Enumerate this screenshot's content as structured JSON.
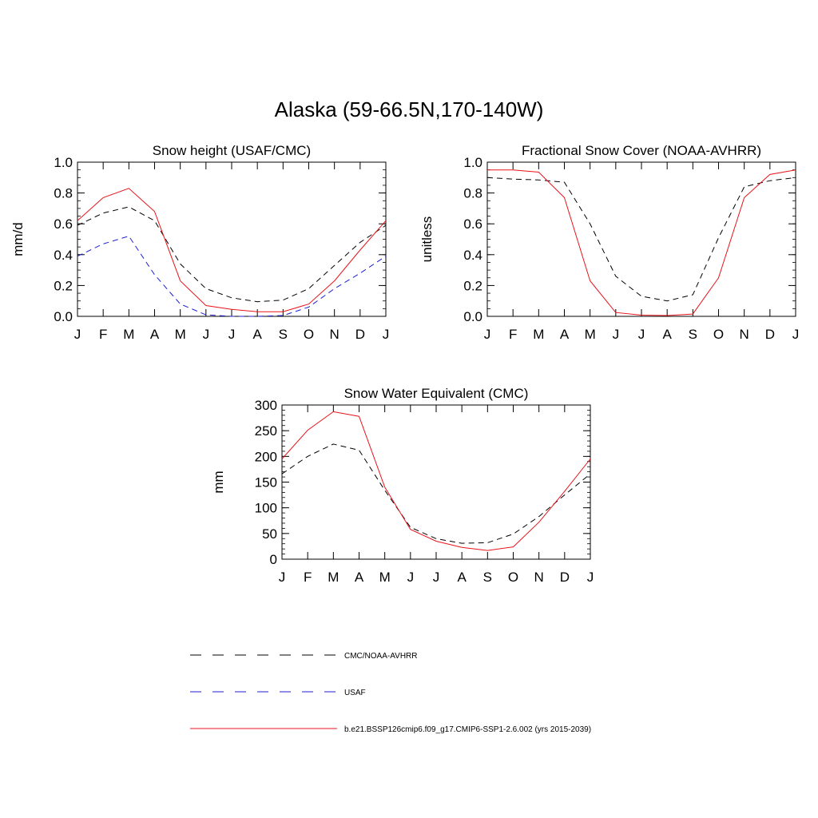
{
  "title": "Alaska (59-66.5N,170-140W)",
  "months": [
    "J",
    "F",
    "M",
    "A",
    "M",
    "J",
    "J",
    "A",
    "S",
    "O",
    "N",
    "D",
    "J"
  ],
  "colors": {
    "obs": "#000000",
    "usaf": "#1f1fd6",
    "model": "#e8141a"
  },
  "legend": [
    {
      "label": "CMC/NOAA-AVHRR",
      "style": "dashed",
      "color": "#000000"
    },
    {
      "label": "USAF",
      "style": "dashed",
      "color": "#1f1fd6"
    },
    {
      "label": "b.e21.BSSP126cmip6.f09_g17.CMIP6-SSP1-2.6.002 (yrs 2015-2039)",
      "style": "solid",
      "color": "#e8141a"
    }
  ],
  "chart_data": [
    {
      "type": "line",
      "title": "Snow height (USAF/CMC)",
      "ylabel": "mm/d",
      "ylim": [
        0,
        1.0
      ],
      "yticks": [
        "0.0",
        "0.2",
        "0.4",
        "0.6",
        "0.8",
        "1.0"
      ],
      "ytick_values": [
        0,
        0.2,
        0.4,
        0.6,
        0.8,
        1.0
      ],
      "yminor_step": 0.05,
      "series": [
        {
          "name": "CMC/NOAA-AVHRR",
          "style": "dashed",
          "color": "#000000",
          "values": [
            0.59,
            0.67,
            0.71,
            0.62,
            0.34,
            0.18,
            0.12,
            0.095,
            0.105,
            0.18,
            0.33,
            0.48,
            0.59
          ]
        },
        {
          "name": "USAF",
          "style": "dashed",
          "color": "#1f1fd6",
          "values": [
            0.39,
            0.47,
            0.52,
            0.27,
            0.08,
            0.01,
            0.0,
            0.0,
            0.005,
            0.06,
            0.18,
            0.28,
            0.39
          ]
        },
        {
          "name": "b.e21.BSSP126cmip6.f09_g17.CMIP6-SSP1-2.6.002 (yrs 2015-2039)",
          "style": "solid",
          "color": "#e8141a",
          "values": [
            0.62,
            0.77,
            0.83,
            0.68,
            0.23,
            0.07,
            0.045,
            0.03,
            0.03,
            0.08,
            0.23,
            0.43,
            0.62
          ]
        }
      ]
    },
    {
      "type": "line",
      "title": "Fractional Snow Cover (NOAA-AVHRR)",
      "ylabel": "unitless",
      "ylim": [
        0,
        1.0
      ],
      "yticks": [
        "0.0",
        "0.2",
        "0.4",
        "0.6",
        "0.8",
        "1.0"
      ],
      "ytick_values": [
        0,
        0.2,
        0.4,
        0.6,
        0.8,
        1.0
      ],
      "yminor_step": 0.05,
      "series": [
        {
          "name": "CMC/NOAA-AVHRR",
          "style": "dashed",
          "color": "#000000",
          "values": [
            0.9,
            0.89,
            0.885,
            0.87,
            0.6,
            0.26,
            0.13,
            0.1,
            0.14,
            0.51,
            0.84,
            0.88,
            0.9
          ]
        },
        {
          "name": "b.e21.BSSP126cmip6.f09_g17.CMIP6-SSP1-2.6.002 (yrs 2015-2039)",
          "style": "solid",
          "color": "#e8141a",
          "values": [
            0.95,
            0.95,
            0.935,
            0.77,
            0.23,
            0.025,
            0.008,
            0.005,
            0.015,
            0.25,
            0.77,
            0.92,
            0.95
          ]
        }
      ]
    },
    {
      "type": "line",
      "title": "Snow Water Equivalent (CMC)",
      "ylabel": "mm",
      "ylim": [
        0,
        300
      ],
      "yticks": [
        "0",
        "50",
        "100",
        "150",
        "200",
        "250",
        "300"
      ],
      "ytick_values": [
        0,
        50,
        100,
        150,
        200,
        250,
        300
      ],
      "yminor_step": 10,
      "series": [
        {
          "name": "CMC/NOAA-AVHRR",
          "style": "dashed",
          "color": "#000000",
          "values": [
            166,
            200,
            224,
            212,
            134,
            62,
            40,
            31,
            32,
            49,
            83,
            125,
            166
          ]
        },
        {
          "name": "b.e21.BSSP126cmip6.f09_g17.CMIP6-SSP1-2.6.002 (yrs 2015-2039)",
          "style": "solid",
          "color": "#e8141a",
          "values": [
            195,
            251,
            287,
            278,
            140,
            58,
            35,
            23,
            17,
            24,
            72,
            132,
            195
          ]
        }
      ]
    }
  ]
}
